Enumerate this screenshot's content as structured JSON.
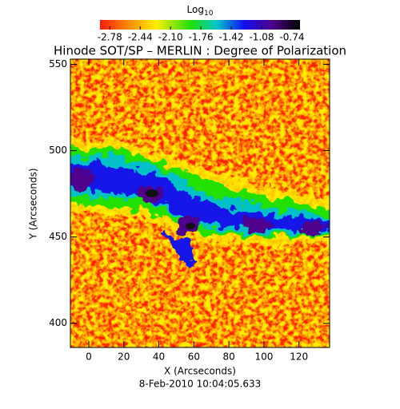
{
  "chart_data": {
    "type": "heatmap",
    "title": "Hinode SOT/SP – MERLIN : Degree of Polarization",
    "colorbar_title": {
      "base": "Log",
      "subscript": "10"
    },
    "clim": [
      -2.89,
      -0.65
    ],
    "cticks": [
      -2.78,
      -2.44,
      {
        "value": -2.1,
        "label": "-2.10"
      },
      -1.76,
      -1.42,
      -1.08,
      -0.74
    ],
    "x_label": "X (Arcseconds)",
    "y_label": "Y (Arcseconds)",
    "xlim": [
      -10.5,
      137.5
    ],
    "xticks": [
      0,
      20,
      40,
      60,
      80,
      100,
      120
    ],
    "ylim": [
      386,
      553
    ],
    "yticks": [
      400,
      450,
      500,
      550
    ],
    "date": "8-Feb-2010 10:04:05.633"
  }
}
